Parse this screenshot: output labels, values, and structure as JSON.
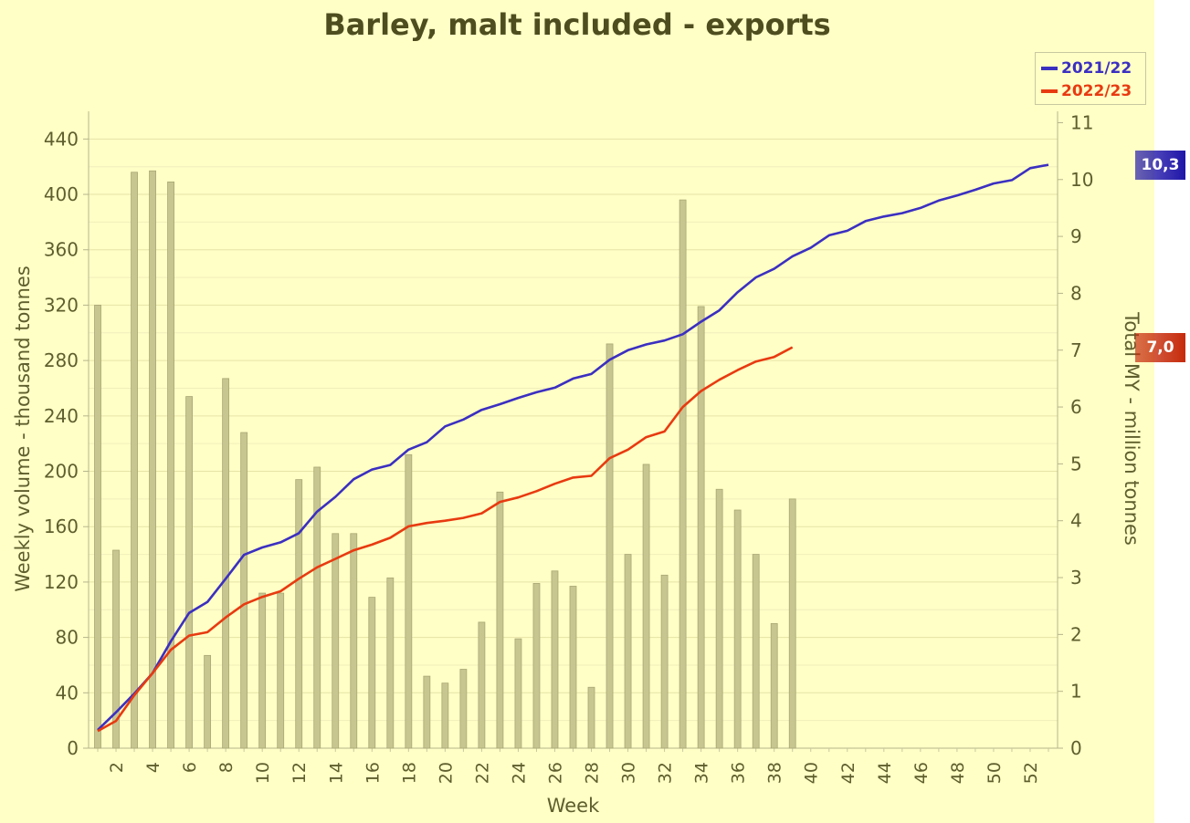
{
  "chart_data": {
    "type": "bar+line",
    "title": "Barley, malt included - exports",
    "xlabel": "Week",
    "ylabel_left": "Weekly volume - thousand tonnes",
    "ylabel_right": "Total MY - million tonnes",
    "xlim": [
      1,
      53
    ],
    "x_ticks": [
      2,
      4,
      6,
      8,
      10,
      12,
      14,
      16,
      18,
      20,
      22,
      24,
      26,
      28,
      30,
      32,
      34,
      36,
      38,
      40,
      42,
      44,
      46,
      48,
      50,
      52
    ],
    "ylim_left": [
      0,
      460
    ],
    "y_ticks_left": [
      0,
      40,
      80,
      120,
      160,
      200,
      240,
      280,
      320,
      360,
      400,
      440
    ],
    "ylim_right": [
      0,
      11.2
    ],
    "y_ticks_right": [
      0,
      1,
      2,
      3,
      4,
      5,
      6,
      7,
      8,
      9,
      10,
      11
    ],
    "grid": true,
    "legend_position": "top-right",
    "weeks": [
      1,
      2,
      3,
      4,
      5,
      6,
      7,
      8,
      9,
      10,
      11,
      12,
      13,
      14,
      15,
      16,
      17,
      18,
      19,
      20,
      21,
      22,
      23,
      24,
      25,
      26,
      27,
      28,
      29,
      30,
      31,
      32,
      33,
      34,
      35,
      36,
      37,
      38,
      39
    ],
    "bars": {
      "values": [
        320,
        143,
        416,
        417,
        409,
        254,
        67,
        267,
        228,
        112,
        112,
        194,
        203,
        155,
        155,
        109,
        123,
        212,
        52,
        47,
        57,
        91,
        185,
        79,
        119,
        128,
        117,
        44,
        292,
        140,
        205,
        125,
        396,
        319,
        187,
        172,
        140,
        90,
        180
      ],
      "color": "#c8c690",
      "border": "#a8a674"
    },
    "series": [
      {
        "name": "2021/22",
        "color": "#3b2fc1",
        "x": [
          1,
          2,
          3,
          4,
          5,
          6,
          7,
          8,
          9,
          10,
          11,
          12,
          13,
          14,
          15,
          16,
          17,
          18,
          19,
          20,
          21,
          22,
          23,
          24,
          25,
          26,
          27,
          28,
          29,
          30,
          31,
          32,
          33,
          34,
          35,
          36,
          37,
          38,
          39,
          40,
          41,
          42,
          43,
          44,
          45,
          46,
          47,
          48,
          49,
          50,
          51,
          52,
          53
        ],
        "values": [
          0.32,
          0.63,
          0.96,
          1.32,
          1.88,
          2.38,
          2.57,
          2.98,
          3.4,
          3.53,
          3.62,
          3.78,
          4.16,
          4.42,
          4.73,
          4.9,
          4.98,
          5.25,
          5.38,
          5.66,
          5.78,
          5.95,
          6.05,
          6.16,
          6.26,
          6.34,
          6.5,
          6.58,
          6.83,
          7.0,
          7.1,
          7.17,
          7.28,
          7.5,
          7.7,
          8.02,
          8.28,
          8.43,
          8.65,
          8.8,
          9.02,
          9.1,
          9.27,
          9.35,
          9.41,
          9.5,
          9.63,
          9.72,
          9.82,
          9.93,
          9.99,
          10.2,
          10.26
        ]
      },
      {
        "name": "2022/23",
        "color": "#e83a10",
        "x": [
          1,
          2,
          3,
          4,
          5,
          6,
          7,
          8,
          9,
          10,
          11,
          12,
          13,
          14,
          15,
          16,
          17,
          18,
          19,
          20,
          21,
          22,
          23,
          24,
          25,
          26,
          27,
          28,
          29,
          30,
          31,
          32,
          33,
          34,
          35,
          36,
          37,
          38,
          39
        ],
        "values": [
          0.3,
          0.48,
          0.93,
          1.32,
          1.73,
          1.98,
          2.04,
          2.3,
          2.53,
          2.66,
          2.76,
          2.98,
          3.18,
          3.33,
          3.48,
          3.58,
          3.7,
          3.9,
          3.96,
          4.0,
          4.05,
          4.13,
          4.33,
          4.41,
          4.52,
          4.65,
          4.76,
          4.79,
          5.1,
          5.25,
          5.47,
          5.57,
          6.0,
          6.28,
          6.48,
          6.65,
          6.8,
          6.88,
          7.05
        ]
      }
    ],
    "badges": [
      {
        "label": "10,3",
        "value": 10.26,
        "color": "#1f15a8"
      },
      {
        "label": "7,0",
        "value": 7.05,
        "color": "#c62a0a"
      }
    ]
  }
}
